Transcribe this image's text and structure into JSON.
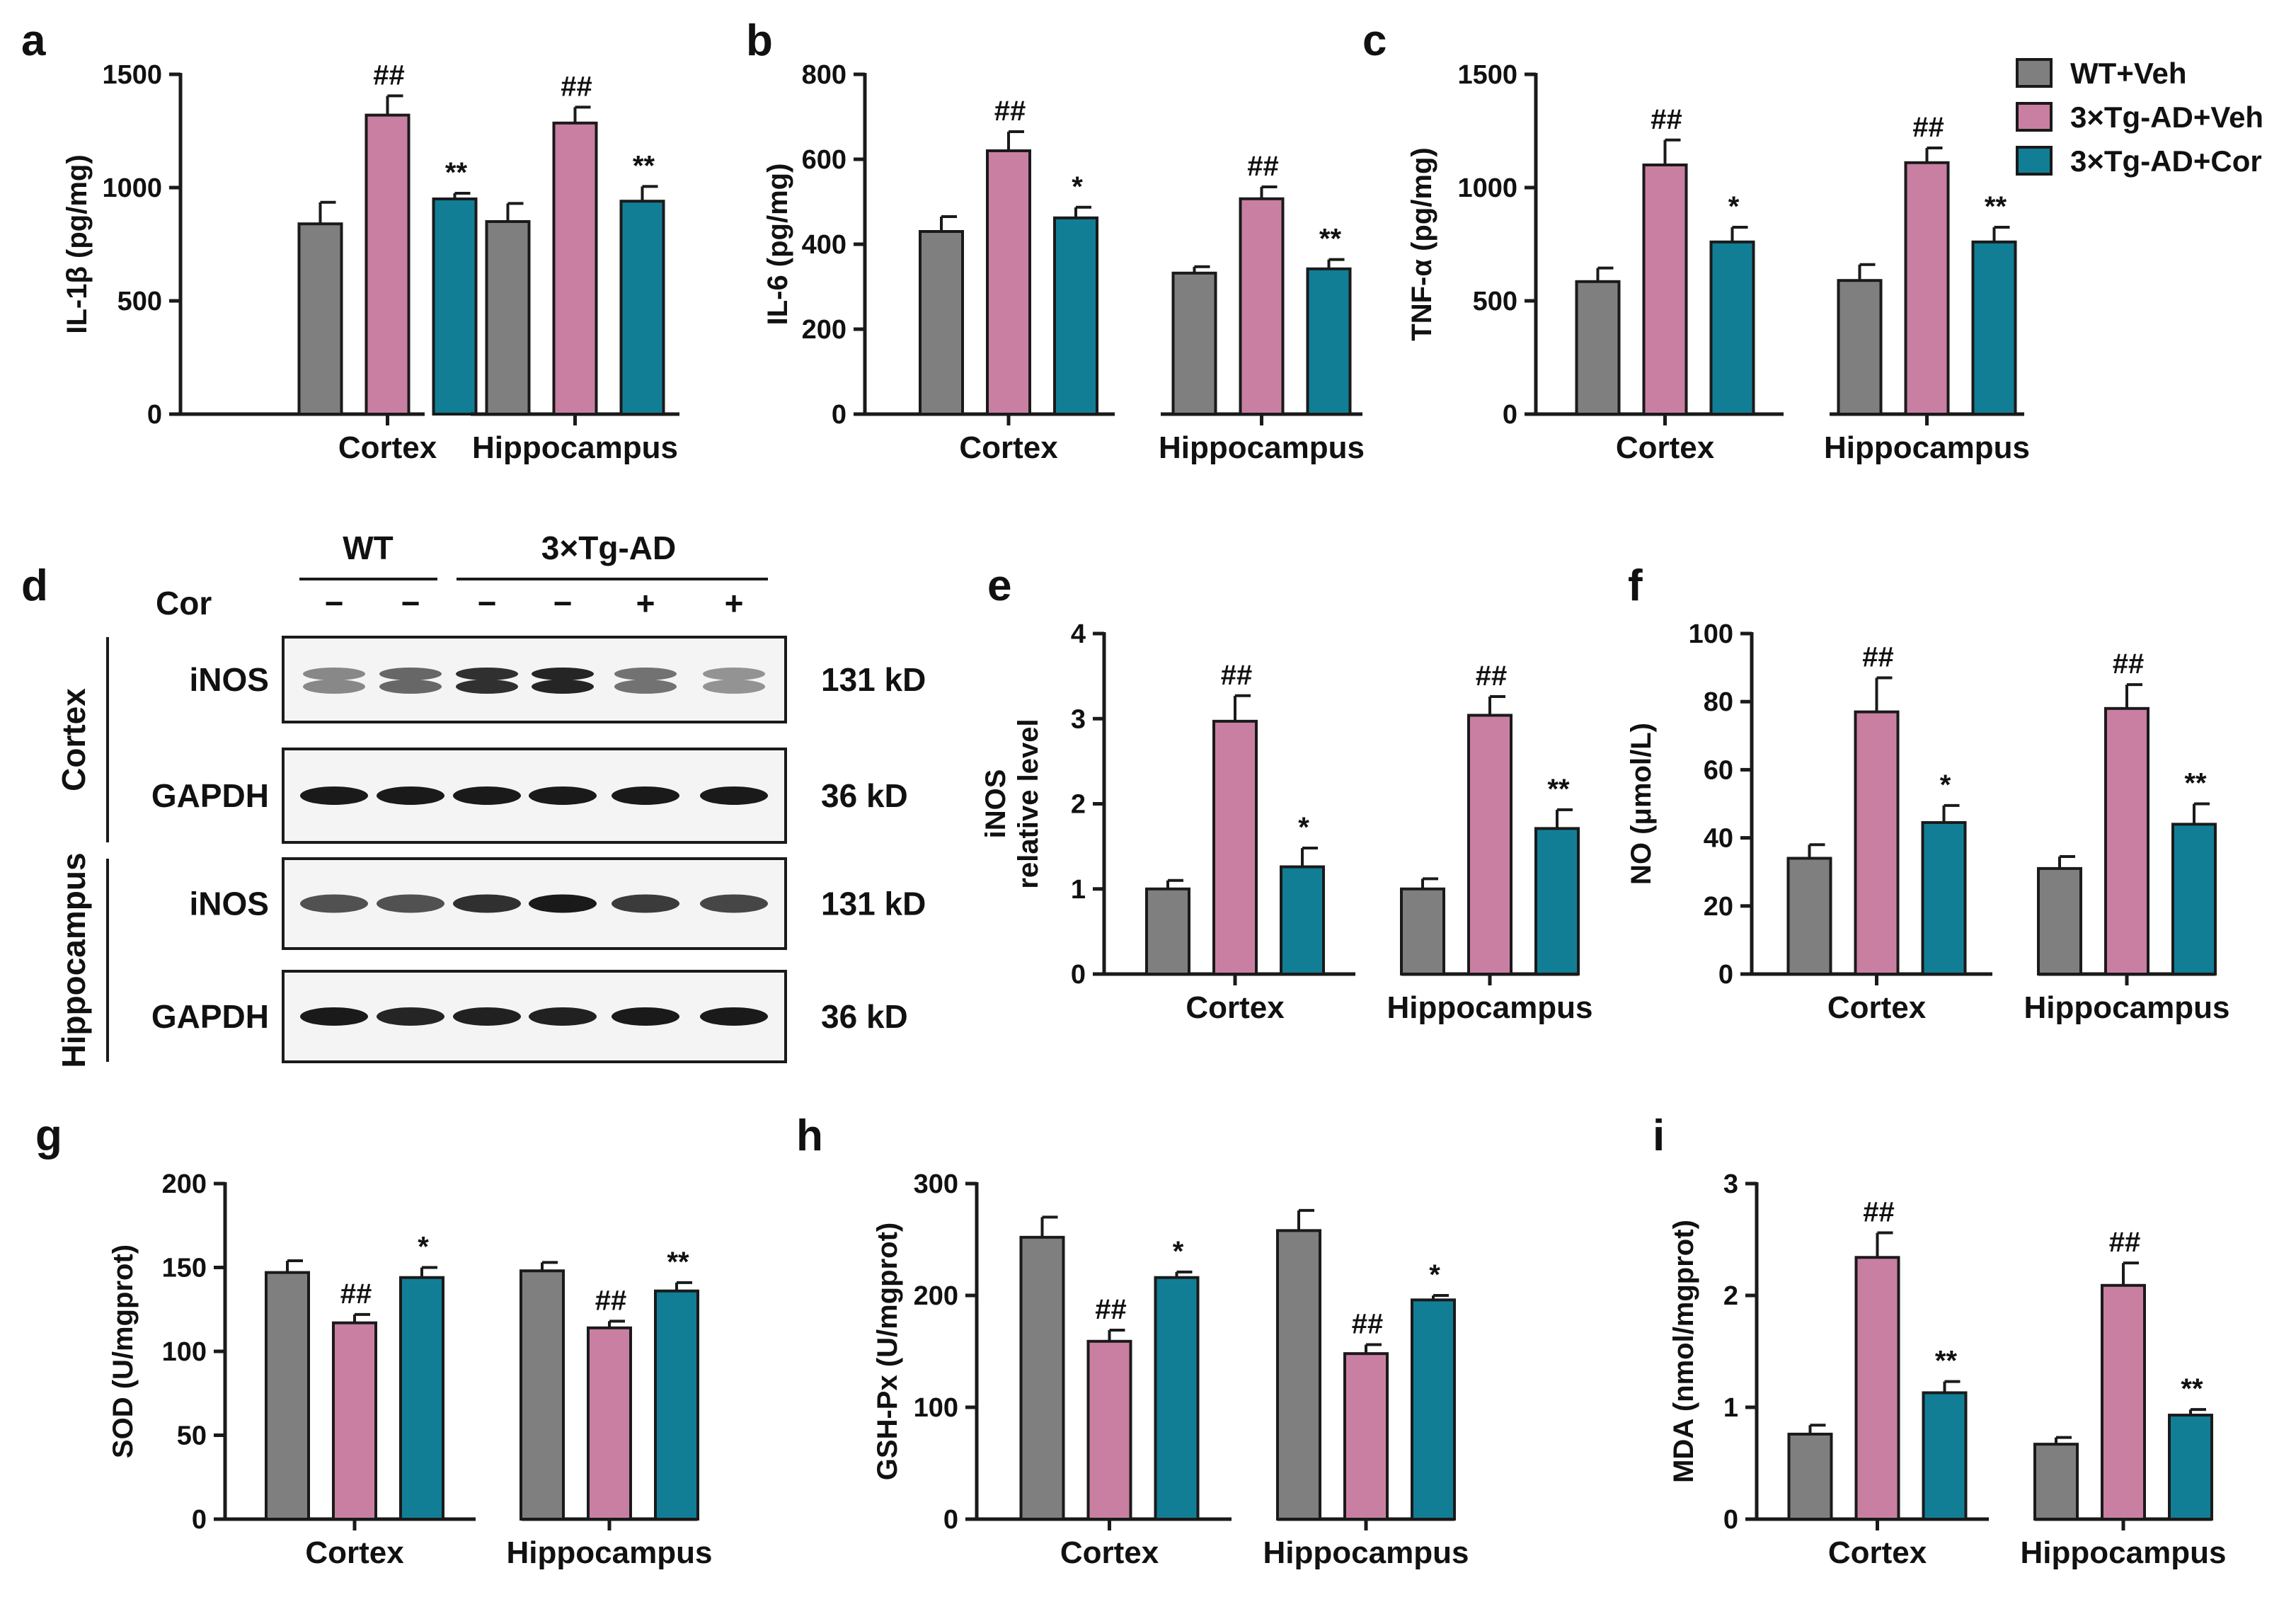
{
  "colors": {
    "WT+Veh": "#7f7f7f",
    "3×Tg-AD+Veh": "#c97fa2",
    "3×Tg-AD+Cor": "#117e96",
    "axis": "#1a1a1a"
  },
  "legend": [
    {
      "label": "WT+Veh"
    },
    {
      "label": "3×Tg-AD+Veh"
    },
    {
      "label": "3×Tg-AD+Cor"
    }
  ],
  "chart_data": [
    {
      "panel": "a",
      "type": "bar",
      "ylabel": "IL-1β (pg/mg)",
      "ylim": [
        0,
        1500
      ],
      "yticks": [
        "0",
        "500",
        "1000",
        "1500"
      ],
      "categories": [
        "Cortex",
        "Hippocampus"
      ],
      "series": [
        {
          "name": "WT+Veh",
          "values": [
            840,
            850
          ],
          "errors": [
            95,
            80
          ],
          "sig": [
            "",
            ""
          ]
        },
        {
          "name": "3×Tg-AD+Veh",
          "values": [
            1320,
            1285
          ],
          "errors": [
            85,
            70
          ],
          "sig": [
            "##",
            "##"
          ]
        },
        {
          "name": "3×Tg-AD+Cor",
          "values": [
            950,
            940
          ],
          "errors": [
            25,
            65
          ],
          "sig": [
            "**",
            "**"
          ]
        }
      ]
    },
    {
      "panel": "b",
      "type": "bar",
      "ylabel": "IL-6 (pg/mg)",
      "ylim": [
        0,
        800
      ],
      "yticks": [
        "0",
        "200",
        "400",
        "600",
        "800"
      ],
      "categories": [
        "Cortex",
        "Hippocampus"
      ],
      "series": [
        {
          "name": "WT+Veh",
          "values": [
            430,
            332
          ],
          "errors": [
            35,
            15
          ],
          "sig": [
            "",
            ""
          ]
        },
        {
          "name": "3×Tg-AD+Veh",
          "values": [
            620,
            507
          ],
          "errors": [
            45,
            28
          ],
          "sig": [
            "##",
            "##"
          ]
        },
        {
          "name": "3×Tg-AD+Cor",
          "values": [
            462,
            342
          ],
          "errors": [
            25,
            22
          ],
          "sig": [
            "*",
            "**"
          ]
        }
      ]
    },
    {
      "panel": "c",
      "type": "bar",
      "ylabel": "TNF-α (pg/mg)",
      "ylim": [
        0,
        1500
      ],
      "yticks": [
        "0",
        "500",
        "1000",
        "1500"
      ],
      "categories": [
        "Cortex",
        "Hippocampus"
      ],
      "series": [
        {
          "name": "WT+Veh",
          "values": [
            585,
            590
          ],
          "errors": [
            60,
            70
          ],
          "sig": [
            "",
            ""
          ]
        },
        {
          "name": "3×Tg-AD+Veh",
          "values": [
            1100,
            1110
          ],
          "errors": [
            110,
            65
          ],
          "sig": [
            "##",
            "##"
          ]
        },
        {
          "name": "3×Tg-AD+Cor",
          "values": [
            760,
            760
          ],
          "errors": [
            65,
            65
          ],
          "sig": [
            "*",
            "**"
          ]
        }
      ]
    },
    {
      "panel": "e",
      "type": "bar",
      "ylabel": "iNOS\nrelative level",
      "ylim": [
        0,
        4
      ],
      "yticks": [
        "0",
        "1",
        "2",
        "3",
        "4"
      ],
      "categories": [
        "Cortex",
        "Hippocampus"
      ],
      "series": [
        {
          "name": "WT+Veh",
          "values": [
            1.0,
            1.0
          ],
          "errors": [
            0.1,
            0.12
          ],
          "sig": [
            "",
            ""
          ]
        },
        {
          "name": "3×Tg-AD+Veh",
          "values": [
            2.97,
            3.04
          ],
          "errors": [
            0.3,
            0.22
          ],
          "sig": [
            "##",
            "##"
          ]
        },
        {
          "name": "3×Tg-AD+Cor",
          "values": [
            1.26,
            1.71
          ],
          "errors": [
            0.22,
            0.22
          ],
          "sig": [
            "*",
            "**"
          ]
        }
      ]
    },
    {
      "panel": "f",
      "type": "bar",
      "ylabel": "NO (μmol/L)",
      "ylim": [
        0,
        100
      ],
      "yticks": [
        "0",
        "20",
        "40",
        "60",
        "80",
        "100"
      ],
      "categories": [
        "Cortex",
        "Hippocampus"
      ],
      "series": [
        {
          "name": "WT+Veh",
          "values": [
            34,
            31
          ],
          "errors": [
            4,
            3.5
          ],
          "sig": [
            "",
            ""
          ]
        },
        {
          "name": "3×Tg-AD+Veh",
          "values": [
            77,
            78
          ],
          "errors": [
            10,
            7
          ],
          "sig": [
            "##",
            "##"
          ]
        },
        {
          "name": "3×Tg-AD+Cor",
          "values": [
            44.5,
            44
          ],
          "errors": [
            5,
            6
          ],
          "sig": [
            "*",
            "**"
          ]
        }
      ]
    },
    {
      "panel": "g",
      "type": "bar",
      "ylabel": "SOD (U/mgprot)",
      "ylim": [
        0,
        200
      ],
      "yticks": [
        "0",
        "50",
        "100",
        "150",
        "200"
      ],
      "categories": [
        "Cortex",
        "Hippocampus"
      ],
      "series": [
        {
          "name": "WT+Veh",
          "values": [
            147,
            148
          ],
          "errors": [
            7,
            5
          ],
          "sig": [
            "",
            ""
          ]
        },
        {
          "name": "3×Tg-AD+Veh",
          "values": [
            117,
            114
          ],
          "errors": [
            5,
            4
          ],
          "sig": [
            "##",
            "##"
          ]
        },
        {
          "name": "3×Tg-AD+Cor",
          "values": [
            144,
            136
          ],
          "errors": [
            6,
            5
          ],
          "sig": [
            "*",
            "**"
          ]
        }
      ]
    },
    {
      "panel": "h",
      "type": "bar",
      "ylabel": "GSH-Px (U/mgprot)",
      "ylim": [
        0,
        300
      ],
      "yticks": [
        "0",
        "100",
        "200",
        "300"
      ],
      "categories": [
        "Cortex",
        "Hippocampus"
      ],
      "series": [
        {
          "name": "WT+Veh",
          "values": [
            252,
            258
          ],
          "errors": [
            18,
            18
          ],
          "sig": [
            "",
            ""
          ]
        },
        {
          "name": "3×Tg-AD+Veh",
          "values": [
            159,
            148
          ],
          "errors": [
            10,
            8
          ],
          "sig": [
            "##",
            "##"
          ]
        },
        {
          "name": "3×Tg-AD+Cor",
          "values": [
            216,
            196
          ],
          "errors": [
            5,
            4
          ],
          "sig": [
            "*",
            "*"
          ]
        }
      ]
    },
    {
      "panel": "i",
      "type": "bar",
      "ylabel": "MDA (nmol/mgprot)",
      "ylim": [
        0,
        3
      ],
      "yticks": [
        "0",
        "1",
        "2",
        "3"
      ],
      "categories": [
        "Cortex",
        "Hippocampus"
      ],
      "series": [
        {
          "name": "WT+Veh",
          "values": [
            0.76,
            0.67
          ],
          "errors": [
            0.08,
            0.06
          ],
          "sig": [
            "",
            ""
          ]
        },
        {
          "name": "3×Tg-AD+Veh",
          "values": [
            2.34,
            2.09
          ],
          "errors": [
            0.22,
            0.2
          ],
          "sig": [
            "##",
            "##"
          ]
        },
        {
          "name": "3×Tg-AD+Cor",
          "values": [
            1.13,
            0.93
          ],
          "errors": [
            0.1,
            0.05
          ],
          "sig": [
            "**",
            "**"
          ]
        }
      ]
    }
  ],
  "western_blot": {
    "panel": "d",
    "group_wt": "WT",
    "group_tg": "3×Tg-AD",
    "cor_label": "Cor",
    "cor_signs": [
      "−",
      "−",
      "−",
      "−",
      "+",
      "+"
    ],
    "sections": [
      {
        "label": "Cortex",
        "rows": [
          {
            "protein": "iNOS",
            "size": "131 kD",
            "intensity": [
              0.45,
              0.6,
              0.85,
              0.9,
              0.55,
              0.4
            ],
            "double": true
          },
          {
            "protein": "GAPDH",
            "size": "36 kD",
            "intensity": [
              0.95,
              0.95,
              0.95,
              0.95,
              0.95,
              0.95
            ],
            "double": false
          }
        ]
      },
      {
        "label": "Hippocampus",
        "rows": [
          {
            "protein": "iNOS",
            "size": "131 kD",
            "intensity": [
              0.7,
              0.7,
              0.85,
              0.95,
              0.8,
              0.75
            ],
            "double": false
          },
          {
            "protein": "GAPDH",
            "size": "36 kD",
            "intensity": [
              0.95,
              0.9,
              0.92,
              0.92,
              0.95,
              0.95
            ],
            "double": false
          }
        ]
      }
    ]
  }
}
